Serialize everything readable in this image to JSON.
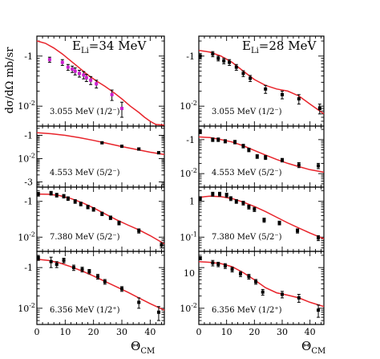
{
  "figure": {
    "ylabel": "dσ/dΩ mb/sr",
    "xlabel_main": "Θ",
    "xlabel_sub": "CM",
    "columns": [
      {
        "label_main": "E",
        "label_sub": "Li",
        "label_rest": "=34 MeV"
      },
      {
        "label_main": "E",
        "label_sub": "Li",
        "label_rest": "=28 MeV"
      }
    ]
  },
  "chart_data": {
    "type": "scatter",
    "xlim": [
      0,
      45
    ],
    "xticks": [
      0,
      10,
      20,
      30,
      40
    ],
    "yscale": "log",
    "panels": [
      {
        "col": 0,
        "row": 0,
        "label": "3.055 MeV (1/2⁻)",
        "ylim": [
          0.004,
          0.25
        ],
        "yticks": [
          {
            "v": 0.1,
            "t": "-1"
          },
          {
            "v": 0.01,
            "t": "10",
            "sup": "-2"
          }
        ],
        "points_color": "#cc1fd1",
        "points": [
          [
            4.5,
            0.085,
            0.01
          ],
          [
            9,
            0.075,
            0.01
          ],
          [
            11,
            0.06,
            0.008
          ],
          [
            12.5,
            0.055,
            0.008
          ],
          [
            13.5,
            0.05,
            0.008
          ],
          [
            15,
            0.045,
            0.007
          ],
          [
            16.5,
            0.042,
            0.007
          ],
          [
            17.5,
            0.037,
            0.006
          ],
          [
            19,
            0.033,
            0.006
          ],
          [
            21,
            0.028,
            0.005
          ],
          [
            26.5,
            0.017,
            0.004
          ],
          [
            30,
            0.009,
            0.003
          ]
        ],
        "curve": [
          [
            0,
            0.2
          ],
          [
            3,
            0.18
          ],
          [
            6,
            0.145
          ],
          [
            9,
            0.11
          ],
          [
            12,
            0.08
          ],
          [
            15,
            0.058
          ],
          [
            18,
            0.042
          ],
          [
            21,
            0.032
          ],
          [
            24,
            0.025
          ],
          [
            27,
            0.019
          ],
          [
            30,
            0.014
          ],
          [
            33,
            0.01
          ],
          [
            36,
            0.0075
          ],
          [
            38,
            0.006
          ],
          [
            40,
            0.005
          ],
          [
            42,
            0.0043
          ],
          [
            45,
            0.0042
          ]
        ]
      },
      {
        "col": 0,
        "row": 1,
        "label": "4.553 MeV (5/2⁻)",
        "ylim": [
          0.0006,
          0.25
        ],
        "yticks": [
          {
            "v": 0.1,
            "t": "-1"
          },
          {
            "v": 0.01,
            "t": "10",
            "sup": "-2"
          },
          {
            "v": 0.001,
            "t": "-3"
          }
        ],
        "points_color": "#000000",
        "points": [
          [
            23,
            0.048,
            0.004
          ],
          [
            30,
            0.034,
            0.003
          ],
          [
            36,
            0.026,
            0.003
          ],
          [
            43,
            0.018,
            0.002
          ]
        ],
        "curve": [
          [
            0,
            0.13
          ],
          [
            5,
            0.118
          ],
          [
            10,
            0.1
          ],
          [
            15,
            0.08
          ],
          [
            20,
            0.061
          ],
          [
            25,
            0.045
          ],
          [
            30,
            0.033
          ],
          [
            35,
            0.025
          ],
          [
            40,
            0.019
          ],
          [
            45,
            0.015
          ]
        ]
      },
      {
        "col": 0,
        "row": 2,
        "label": "7.380 MeV (5/2⁻)",
        "ylim": [
          0.004,
          0.25
        ],
        "yticks": [
          {
            "v": 0.1,
            "t": "-1"
          },
          {
            "v": 0.01,
            "t": "10",
            "sup": "-2"
          }
        ],
        "points_color": "#000000",
        "points": [
          [
            0.5,
            0.16,
            0.02
          ],
          [
            5,
            0.17,
            0.02
          ],
          [
            7,
            0.15,
            0.018
          ],
          [
            9.5,
            0.14,
            0.016
          ],
          [
            11,
            0.12,
            0.014
          ],
          [
            13.5,
            0.1,
            0.012
          ],
          [
            15.5,
            0.085,
            0.01
          ],
          [
            18,
            0.07,
            0.008
          ],
          [
            20,
            0.06,
            0.007
          ],
          [
            23,
            0.045,
            0.005
          ],
          [
            26,
            0.035,
            0.004
          ],
          [
            29,
            0.025,
            0.003
          ],
          [
            36,
            0.015,
            0.002
          ],
          [
            44,
            0.006,
            0.001
          ]
        ],
        "curve": [
          [
            0,
            0.16
          ],
          [
            4,
            0.158
          ],
          [
            8,
            0.145
          ],
          [
            12,
            0.12
          ],
          [
            16,
            0.092
          ],
          [
            20,
            0.066
          ],
          [
            24,
            0.045
          ],
          [
            28,
            0.031
          ],
          [
            32,
            0.022
          ],
          [
            36,
            0.016
          ],
          [
            40,
            0.011
          ],
          [
            45,
            0.0065
          ]
        ]
      },
      {
        "col": 0,
        "row": 3,
        "label": "6.356 MeV (1/2⁺)",
        "ylim": [
          0.004,
          0.25
        ],
        "yticks": [
          {
            "v": 0.1,
            "t": "-1"
          },
          {
            "v": 0.01,
            "t": "10",
            "sup": "-2"
          }
        ],
        "points_color": "#000000",
        "points": [
          [
            0.5,
            0.17,
            0.02
          ],
          [
            5,
            0.14,
            0.04
          ],
          [
            7,
            0.12,
            0.02
          ],
          [
            9.5,
            0.15,
            0.02
          ],
          [
            13,
            0.1,
            0.015
          ],
          [
            16,
            0.09,
            0.012
          ],
          [
            18.5,
            0.08,
            0.01
          ],
          [
            21.5,
            0.06,
            0.008
          ],
          [
            24,
            0.045,
            0.006
          ],
          [
            30,
            0.03,
            0.004
          ],
          [
            36,
            0.014,
            0.004
          ],
          [
            43,
            0.008,
            0.003
          ]
        ],
        "curve": [
          [
            0,
            0.16
          ],
          [
            4,
            0.15
          ],
          [
            8,
            0.13
          ],
          [
            12,
            0.105
          ],
          [
            16,
            0.082
          ],
          [
            20,
            0.062
          ],
          [
            24,
            0.046
          ],
          [
            28,
            0.034
          ],
          [
            32,
            0.025
          ],
          [
            36,
            0.018
          ],
          [
            40,
            0.013
          ],
          [
            45,
            0.009
          ]
        ]
      },
      {
        "col": 1,
        "row": 0,
        "label": "3.055 MeV (1/2⁻)",
        "ylim": [
          0.004,
          0.25
        ],
        "yticks": [
          {
            "v": 0.1,
            "t": "-1"
          },
          {
            "v": 0.01,
            "t": "10",
            "sup": "-2"
          }
        ],
        "points_color": "#000000",
        "points": [
          [
            0.5,
            0.1,
            0.012
          ],
          [
            5,
            0.11,
            0.013
          ],
          [
            7,
            0.09,
            0.01
          ],
          [
            9,
            0.08,
            0.01
          ],
          [
            11,
            0.075,
            0.01
          ],
          [
            13.5,
            0.06,
            0.008
          ],
          [
            16,
            0.045,
            0.006
          ],
          [
            18.5,
            0.036,
            0.005
          ],
          [
            24,
            0.022,
            0.004
          ],
          [
            30,
            0.017,
            0.003
          ],
          [
            36,
            0.014,
            0.003
          ],
          [
            43.5,
            0.009,
            0.002
          ]
        ],
        "curve": [
          [
            0,
            0.13
          ],
          [
            4,
            0.12
          ],
          [
            8,
            0.1
          ],
          [
            12,
            0.075
          ],
          [
            16,
            0.05
          ],
          [
            20,
            0.034
          ],
          [
            24,
            0.026
          ],
          [
            28,
            0.022
          ],
          [
            32,
            0.02
          ],
          [
            36,
            0.016
          ],
          [
            40,
            0.011
          ],
          [
            45,
            0.007
          ]
        ]
      },
      {
        "col": 1,
        "row": 1,
        "label": "4.553 MeV (5/2⁻)",
        "ylim": [
          0.004,
          0.25
        ],
        "yticks": [
          {
            "v": 0.1,
            "t": "-1"
          },
          {
            "v": 0.01,
            "t": "10",
            "sup": "-2"
          }
        ],
        "points_color": "#000000",
        "points": [
          [
            0.5,
            0.17,
            0.02
          ],
          [
            5,
            0.1,
            0.012
          ],
          [
            7,
            0.1,
            0.012
          ],
          [
            9.5,
            0.09,
            0.01
          ],
          [
            13,
            0.085,
            0.01
          ],
          [
            16,
            0.065,
            0.008
          ],
          [
            18,
            0.05,
            0.006
          ],
          [
            21,
            0.032,
            0.004
          ],
          [
            24,
            0.03,
            0.004
          ],
          [
            30,
            0.025,
            0.003
          ],
          [
            36,
            0.018,
            0.003
          ],
          [
            43,
            0.017,
            0.003
          ]
        ],
        "curve": [
          [
            0,
            0.12
          ],
          [
            4,
            0.115
          ],
          [
            8,
            0.1
          ],
          [
            12,
            0.085
          ],
          [
            16,
            0.066
          ],
          [
            20,
            0.048
          ],
          [
            24,
            0.035
          ],
          [
            28,
            0.026
          ],
          [
            32,
            0.02
          ],
          [
            36,
            0.016
          ],
          [
            40,
            0.013
          ],
          [
            45,
            0.011
          ]
        ]
      },
      {
        "col": 1,
        "row": 2,
        "label": "7.380 MeV (5/2⁻)",
        "ylim": [
          0.0004,
          0.025
        ],
        "yticks": [
          {
            "v": 0.01,
            "t": "1"
          },
          {
            "v": 0.001,
            "t": "10",
            "sup": "-1"
          },
          {
            "v": 0.0001,
            "t": "10"
          }
        ],
        "points_color": "#000000",
        "points": [
          [
            0.5,
            0.012,
            0.0015
          ],
          [
            5,
            0.016,
            0.002
          ],
          [
            7.5,
            0.016,
            0.002
          ],
          [
            10,
            0.015,
            0.002
          ],
          [
            11.5,
            0.012,
            0.0015
          ],
          [
            13.5,
            0.01,
            0.0012
          ],
          [
            16,
            0.009,
            0.0011
          ],
          [
            18,
            0.007,
            0.0009
          ],
          [
            20,
            0.006,
            0.0008
          ],
          [
            23.5,
            0.003,
            0.0004
          ],
          [
            29,
            0.0025,
            0.0003
          ],
          [
            35.5,
            0.0015,
            0.0002
          ],
          [
            43,
            0.00095,
            0.00015
          ]
        ],
        "curve": [
          [
            0,
            0.013
          ],
          [
            4,
            0.014
          ],
          [
            8,
            0.0135
          ],
          [
            12,
            0.012
          ],
          [
            16,
            0.0095
          ],
          [
            20,
            0.0072
          ],
          [
            24,
            0.0052
          ],
          [
            28,
            0.0036
          ],
          [
            32,
            0.0025
          ],
          [
            36,
            0.0018
          ],
          [
            40,
            0.0013
          ],
          [
            45,
            0.0009
          ]
        ]
      },
      {
        "col": 1,
        "row": 3,
        "label": "6.356 MeV (1/2⁺)",
        "ylim": [
          0.004,
          0.25
        ],
        "yticks": [
          {
            "v": 0.01,
            "t": "10",
            "sup": "-2"
          }
        ],
        "points_color": "#000000",
        "points": [
          [
            0.5,
            0.17,
            0.015
          ],
          [
            5,
            0.13,
            0.02
          ],
          [
            7,
            0.12,
            0.015
          ],
          [
            9.5,
            0.11,
            0.015
          ],
          [
            12,
            0.09,
            0.012
          ],
          [
            15,
            0.07,
            0.01
          ],
          [
            18,
            0.06,
            0.008
          ],
          [
            20.5,
            0.045,
            0.006
          ],
          [
            23,
            0.025,
            0.004
          ],
          [
            30,
            0.022,
            0.004
          ],
          [
            36,
            0.018,
            0.004
          ],
          [
            43,
            0.009,
            0.003
          ]
        ],
        "curve": [
          [
            0,
            0.14
          ],
          [
            4,
            0.135
          ],
          [
            8,
            0.125
          ],
          [
            12,
            0.105
          ],
          [
            16,
            0.075
          ],
          [
            20,
            0.05
          ],
          [
            24,
            0.032
          ],
          [
            28,
            0.024
          ],
          [
            32,
            0.021
          ],
          [
            36,
            0.018
          ],
          [
            40,
            0.014
          ],
          [
            45,
            0.011
          ]
        ]
      }
    ]
  }
}
